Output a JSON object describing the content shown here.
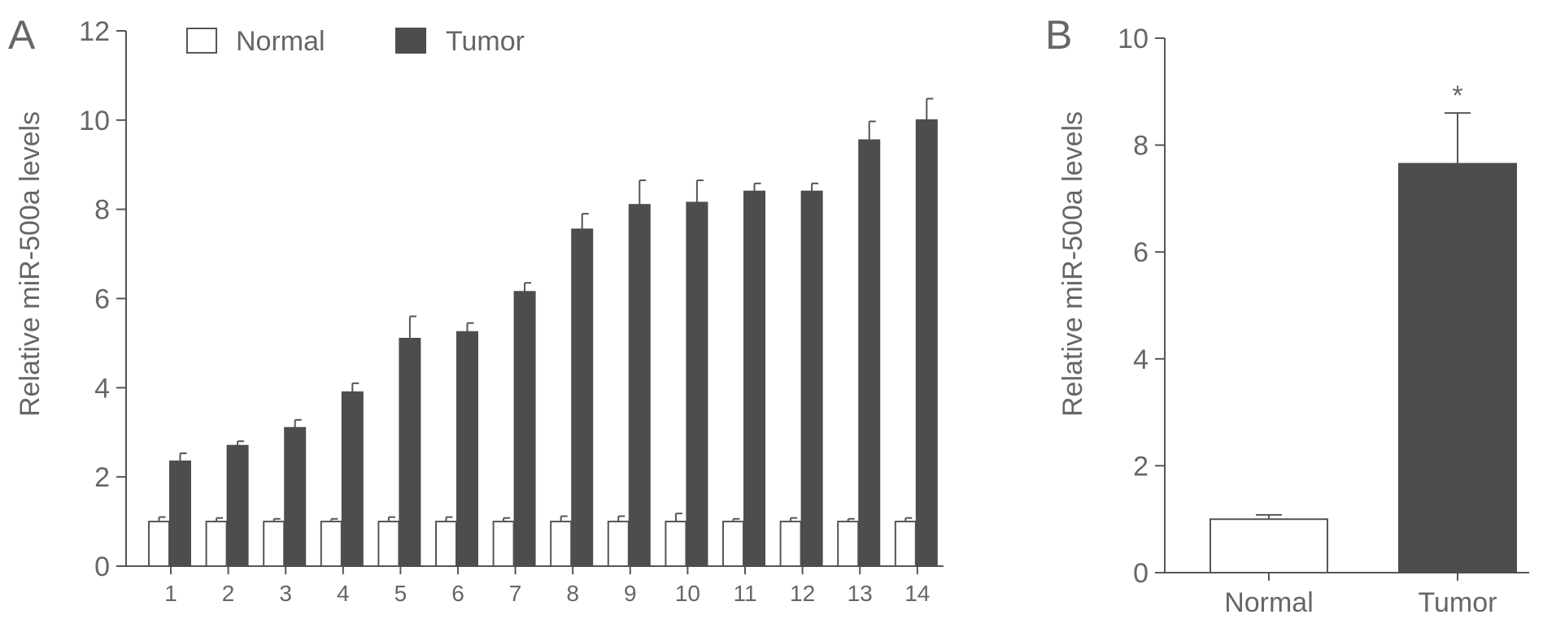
{
  "panels": {
    "a_label": "A",
    "b_label": "B"
  },
  "chart_data": [
    {
      "type": "bar",
      "title": "",
      "xlabel": "",
      "ylabel": "Relative miR-500a levels",
      "categories": [
        "1",
        "2",
        "3",
        "4",
        "5",
        "6",
        "7",
        "8",
        "9",
        "10",
        "11",
        "12",
        "13",
        "14"
      ],
      "series": [
        {
          "name": "Normal",
          "color": "#ffffff",
          "values": [
            1,
            1,
            1,
            1,
            1,
            1,
            1,
            1,
            1,
            1,
            1,
            1,
            1,
            1
          ],
          "errors": [
            0.1,
            0.08,
            0.06,
            0.06,
            0.1,
            0.1,
            0.08,
            0.12,
            0.12,
            0.18,
            0.06,
            0.08,
            0.06,
            0.08
          ]
        },
        {
          "name": "Tumor",
          "color": "#4d4d4d",
          "values": [
            2.35,
            2.7,
            3.1,
            3.9,
            5.1,
            5.25,
            6.15,
            7.55,
            8.1,
            8.15,
            8.4,
            8.4,
            9.55,
            10.0
          ],
          "errors": [
            0.18,
            0.1,
            0.18,
            0.2,
            0.5,
            0.2,
            0.2,
            0.35,
            0.55,
            0.5,
            0.18,
            0.18,
            0.42,
            0.48
          ]
        }
      ],
      "ylim": [
        0,
        12
      ],
      "yticks": [
        "0",
        "2",
        "4",
        "6",
        "8",
        "10",
        "12"
      ],
      "legend": "top-left",
      "grid": false
    },
    {
      "type": "bar",
      "title": "",
      "xlabel": "",
      "ylabel": "Relative miR-500a levels",
      "categories": [
        "Normal",
        "Tumor"
      ],
      "values": [
        1.0,
        7.65
      ],
      "errors": [
        0.08,
        0.95
      ],
      "colors": [
        "#ffffff",
        "#4d4d4d"
      ],
      "annotations": [
        "",
        "*"
      ],
      "ylim": [
        0,
        10
      ],
      "yticks": [
        "0",
        "2",
        "4",
        "6",
        "8",
        "10"
      ],
      "grid": false
    }
  ]
}
